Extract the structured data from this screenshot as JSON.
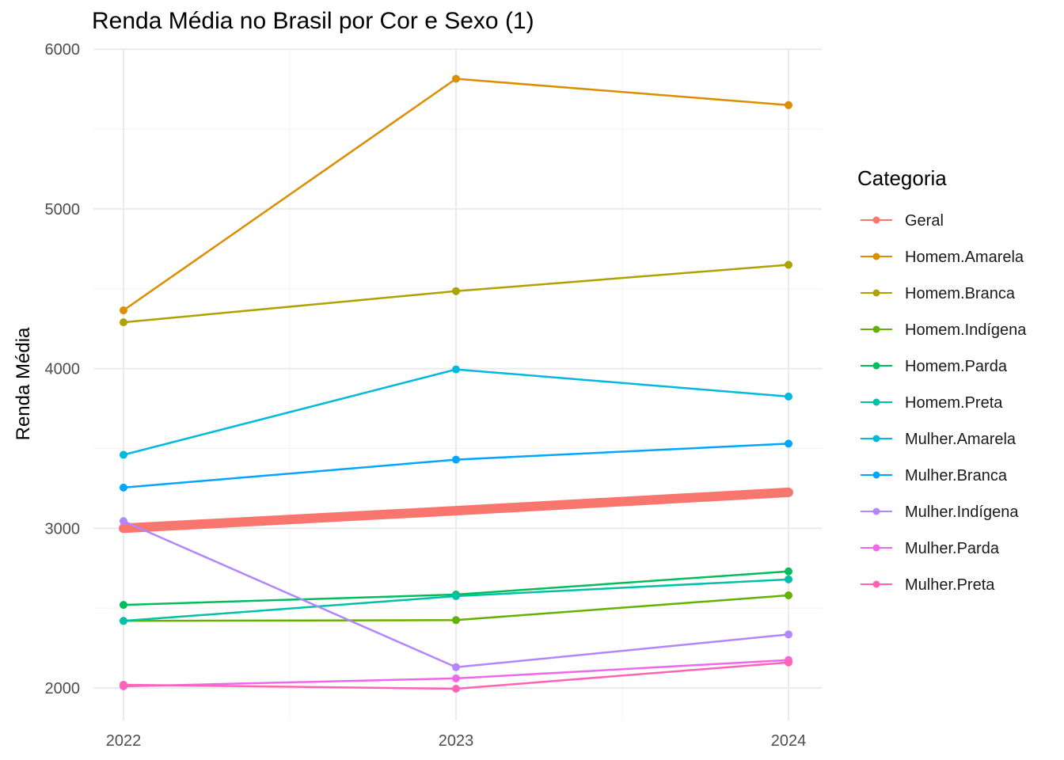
{
  "chart_data": {
    "type": "line",
    "title": "Renda Média no Brasil por Cor e Sexo (1)",
    "xlabel": "",
    "ylabel": "Renda Média",
    "x": [
      2022,
      2023,
      2024
    ],
    "ylim": [
      1850,
      6000
    ],
    "yticks": [
      2000,
      3000,
      4000,
      5000,
      6000
    ],
    "grid": true,
    "legend": {
      "title": "Categoria",
      "position": "right"
    },
    "series": [
      {
        "name": "Geral",
        "color": "#F8766D",
        "values": [
          3000,
          3110,
          3225
        ]
      },
      {
        "name": "Homem.Amarela",
        "color": "#DB8E00",
        "values": [
          4365,
          5815,
          5650
        ]
      },
      {
        "name": "Homem.Branca",
        "color": "#AEA200",
        "values": [
          4290,
          4485,
          4650
        ]
      },
      {
        "name": "Homem.Indígena",
        "color": "#64B200",
        "values": [
          2420,
          2425,
          2580
        ]
      },
      {
        "name": "Homem.Parda",
        "color": "#00BD5C",
        "values": [
          2520,
          2585,
          2730
        ]
      },
      {
        "name": "Homem.Preta",
        "color": "#00C1A7",
        "values": [
          2420,
          2575,
          2680
        ]
      },
      {
        "name": "Mulher.Amarela",
        "color": "#00BADE",
        "values": [
          3460,
          3995,
          3825
        ]
      },
      {
        "name": "Mulher.Branca",
        "color": "#00A6FF",
        "values": [
          3255,
          3430,
          3530
        ]
      },
      {
        "name": "Mulher.Indígena",
        "color": "#B385FF",
        "values": [
          3045,
          2130,
          2335
        ]
      },
      {
        "name": "Mulher.Parda",
        "color": "#EF67EB",
        "values": [
          2010,
          2060,
          2175
        ]
      },
      {
        "name": "Mulher.Preta",
        "color": "#FF63B6",
        "values": [
          2020,
          1995,
          2160
        ]
      }
    ]
  }
}
